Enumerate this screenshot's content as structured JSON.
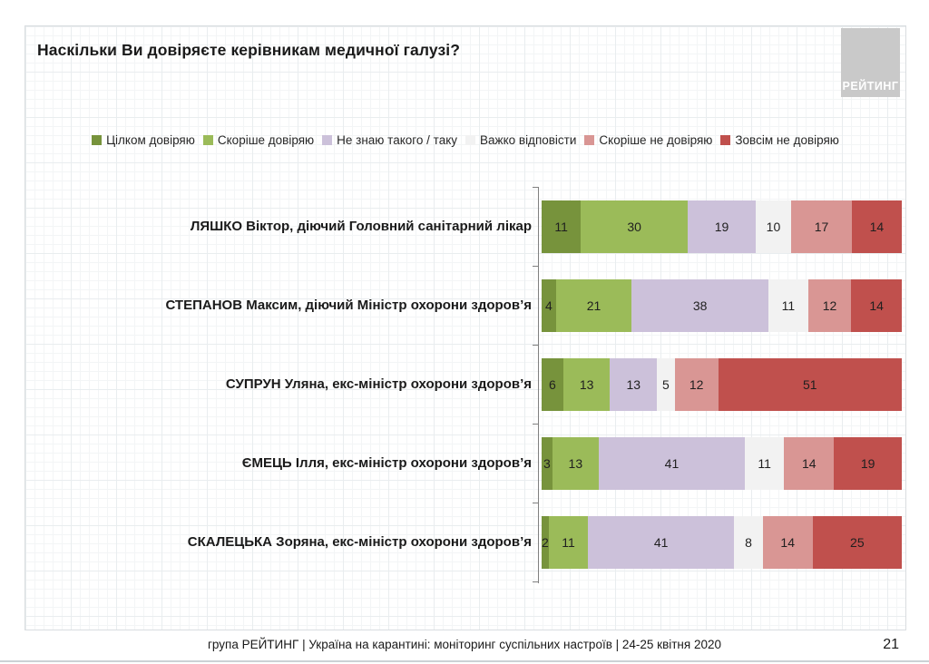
{
  "slide": {
    "title": "Наскільки Ви довіряєте керівникам медичної галузі?",
    "logo_text": "РЕЙТИНГ",
    "footer": "група РЕЙТИНГ | Україна на карантині: моніторинг суспільних настроїв  | 24-25 квітня  2020",
    "page_number": "21"
  },
  "chart_data": {
    "type": "bar",
    "orientation": "horizontal",
    "stacked": true,
    "unit": "percent",
    "title": "Наскільки Ви довіряєте керівникам медичної галузі?",
    "legend_position": "top",
    "value_labels": "inside",
    "grid": false,
    "categories": [
      "ЛЯШКО Віктор, діючий Головний санітарний лікар",
      "СТЕПАНОВ Максим, діючий Міністр охорони здоров’я",
      "СУПРУН Уляна, екс-міністр охорони здоров’я",
      "ЄМЕЦЬ Ілля, екс-міністр охорони здоров’я",
      "СКАЛЕЦЬКА Зоряна, екс-міністр охорони здоров’я"
    ],
    "series": [
      {
        "name": "Цілком довіряю",
        "color": "#77933C",
        "values": [
          11,
          4,
          6,
          3,
          2
        ]
      },
      {
        "name": "Скоріше довіряю",
        "color": "#9BBB59",
        "values": [
          30,
          21,
          13,
          13,
          11
        ]
      },
      {
        "name": "Не знаю такого / таку",
        "color": "#CCC1DA",
        "values": [
          19,
          38,
          13,
          41,
          41
        ]
      },
      {
        "name": "Важко відповісти",
        "color": "#F2F2F2",
        "values": [
          10,
          11,
          5,
          11,
          8
        ]
      },
      {
        "name": "Скоріше не довіряю",
        "color": "#D99694",
        "values": [
          17,
          12,
          12,
          14,
          14
        ]
      },
      {
        "name": "Зовсім не довіряю",
        "color": "#C0504D",
        "values": [
          14,
          14,
          51,
          19,
          25
        ]
      }
    ]
  }
}
